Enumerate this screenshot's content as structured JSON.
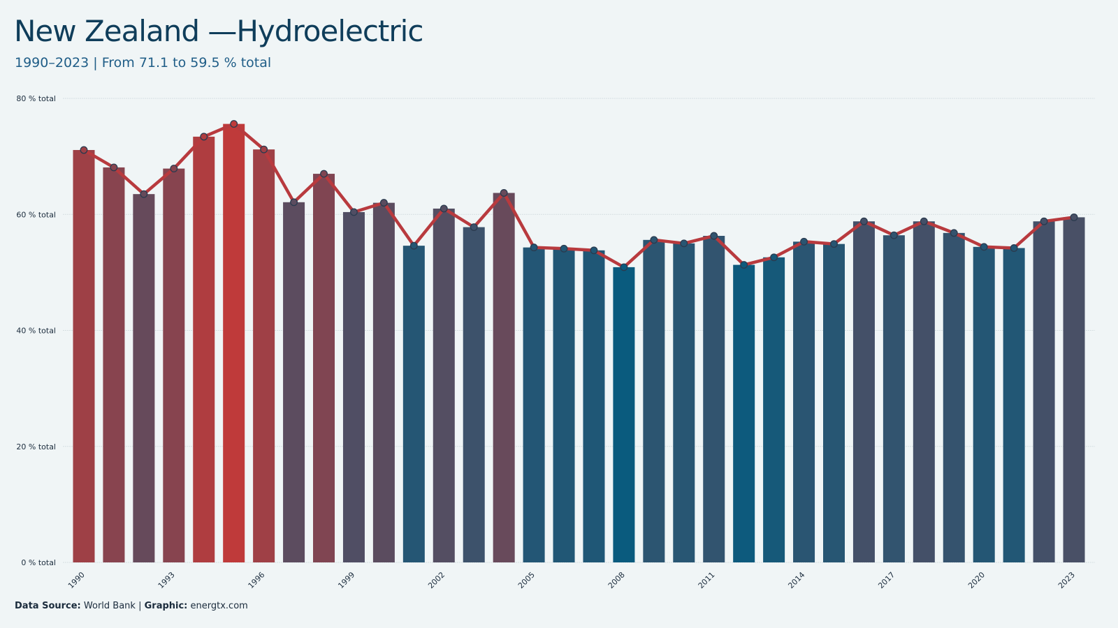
{
  "header": {
    "title": "New Zealand —Hydroelectric",
    "subtitle_years": "1990–2023",
    "subtitle_sep": " | ",
    "subtitle_range": "From 71.1 to 59.5 % total"
  },
  "footer": {
    "source_label": "Data Source:",
    "source_value": "World Bank",
    "sep": " | ",
    "graphic_label": "Graphic:",
    "graphic_value": "energtx.com"
  },
  "colors": {
    "background": "#f0f5f6",
    "line": "#b83a3e",
    "high": "#bf3a3a",
    "low": "#0a5b7e",
    "marker_stroke": "#2a3a4e",
    "grid": "#d6dfe2"
  },
  "chart_data": {
    "type": "bar",
    "overlay": "line",
    "x": [
      1990,
      1991,
      1992,
      1993,
      1994,
      1995,
      1996,
      1997,
      1998,
      1999,
      2000,
      2001,
      2002,
      2003,
      2004,
      2005,
      2006,
      2007,
      2008,
      2009,
      2010,
      2011,
      2012,
      2013,
      2014,
      2015,
      2016,
      2017,
      2018,
      2019,
      2020,
      2021,
      2022,
      2023
    ],
    "values": [
      71.1,
      68.1,
      63.5,
      67.9,
      73.4,
      75.6,
      71.2,
      62.1,
      67.0,
      60.4,
      62.0,
      54.6,
      61.0,
      57.8,
      63.7,
      54.3,
      54.1,
      53.8,
      50.9,
      55.6,
      55.0,
      56.3,
      51.3,
      52.6,
      55.3,
      54.9,
      58.8,
      56.4,
      58.8,
      56.8,
      54.4,
      54.2,
      58.8,
      59.5
    ],
    "x_tick_labels": [
      "1990",
      "1993",
      "1996",
      "1999",
      "2002",
      "2005",
      "2008",
      "2011",
      "2014",
      "2017",
      "2020",
      "2023"
    ],
    "y_ticks": [
      0,
      20,
      40,
      60,
      80
    ],
    "y_tick_suffix": " % total",
    "ylim": [
      0,
      80
    ],
    "grid": true,
    "legend": "none"
  }
}
